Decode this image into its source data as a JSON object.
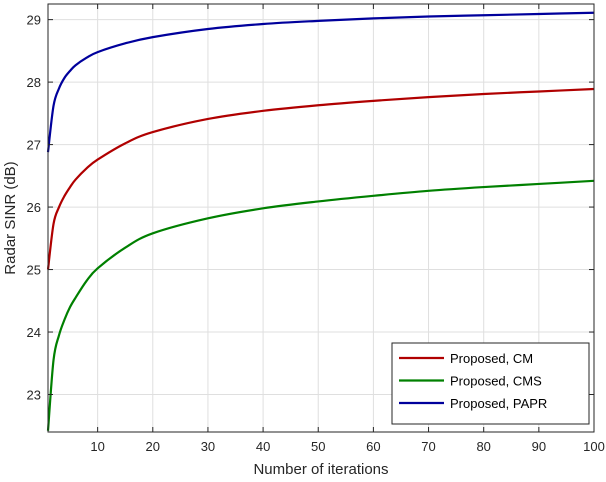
{
  "chart_data": {
    "type": "line",
    "xlabel": "Number of iterations",
    "ylabel": "Radar SINR (dB)",
    "xlim": [
      1,
      100
    ],
    "ylim": [
      22.4,
      29.25
    ],
    "xticks": [
      10,
      20,
      30,
      40,
      50,
      60,
      70,
      80,
      90,
      100
    ],
    "yticks": [
      23,
      24,
      25,
      26,
      27,
      28,
      29
    ],
    "grid": true,
    "legend_position": "bottom-right",
    "series": [
      {
        "name": "Proposed, CM",
        "color": "#b00000",
        "x": [
          1,
          2,
          3,
          4,
          5,
          6,
          8,
          10,
          15,
          20,
          30,
          40,
          50,
          60,
          70,
          80,
          90,
          100
        ],
        "y": [
          25.0,
          25.73,
          26.0,
          26.18,
          26.32,
          26.44,
          26.62,
          26.76,
          27.02,
          27.2,
          27.41,
          27.54,
          27.63,
          27.7,
          27.76,
          27.81,
          27.85,
          27.89
        ]
      },
      {
        "name": "Proposed, CMS",
        "color": "#008000",
        "x": [
          1,
          2,
          3,
          4,
          5,
          6,
          8,
          10,
          15,
          20,
          30,
          40,
          50,
          60,
          70,
          80,
          90,
          100
        ],
        "y": [
          22.42,
          23.55,
          23.95,
          24.2,
          24.4,
          24.55,
          24.82,
          25.02,
          25.35,
          25.58,
          25.82,
          25.98,
          26.09,
          26.18,
          26.26,
          26.32,
          26.37,
          26.42
        ]
      },
      {
        "name": "Proposed, PAPR",
        "color": "#00009c",
        "x": [
          1,
          2,
          3,
          4,
          5,
          6,
          8,
          10,
          15,
          20,
          30,
          40,
          50,
          60,
          70,
          80,
          90,
          100
        ],
        "y": [
          26.88,
          27.62,
          27.9,
          28.07,
          28.18,
          28.27,
          28.39,
          28.48,
          28.62,
          28.72,
          28.85,
          28.93,
          28.98,
          29.02,
          29.05,
          29.07,
          29.09,
          29.11
        ]
      }
    ]
  }
}
